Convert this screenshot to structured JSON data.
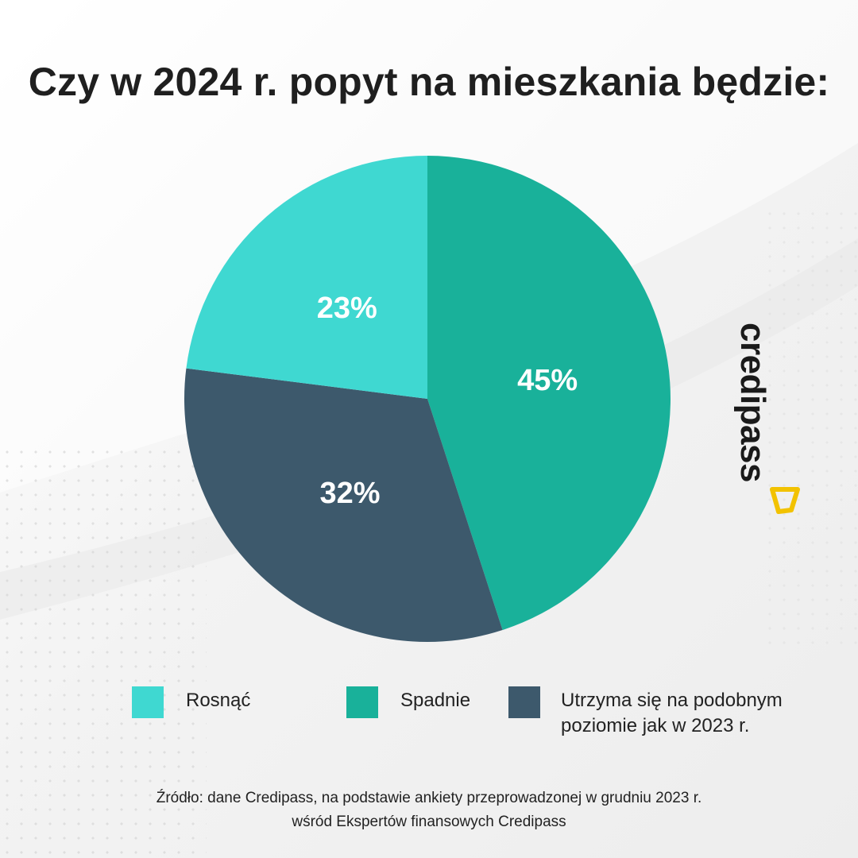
{
  "title": "Czy w 2024 r. popyt na mieszkania będzie:",
  "chart_data": {
    "type": "pie",
    "categories": [
      "Rosnąć",
      "Spadnie",
      "Utrzyma się na podobnym poziomie jak w 2023 r."
    ],
    "values": [
      23,
      45,
      32
    ],
    "labels": [
      "23%",
      "45%",
      "32%"
    ],
    "colors": [
      "#3fd8d1",
      "#19b19a",
      "#3d596c"
    ],
    "legend_position": "bottom"
  },
  "legend": [
    {
      "label": "Rosnąć",
      "color": "#3fd8d1"
    },
    {
      "label": "Spadnie",
      "color": "#19b19a"
    },
    {
      "label_line1": "Utrzyma się na podobnym",
      "label_line2": "poziomie jak w 2023 r.",
      "color": "#3d596c"
    }
  ],
  "brand": {
    "name": "credipass",
    "mark_color": "#f2c200"
  },
  "source": {
    "line1": "Źródło: dane Credipass, na podstawie ankiety przeprowadzonej w grudniu 2023 r.",
    "line2": "wśród Ekspertów finansowych Credipass"
  }
}
